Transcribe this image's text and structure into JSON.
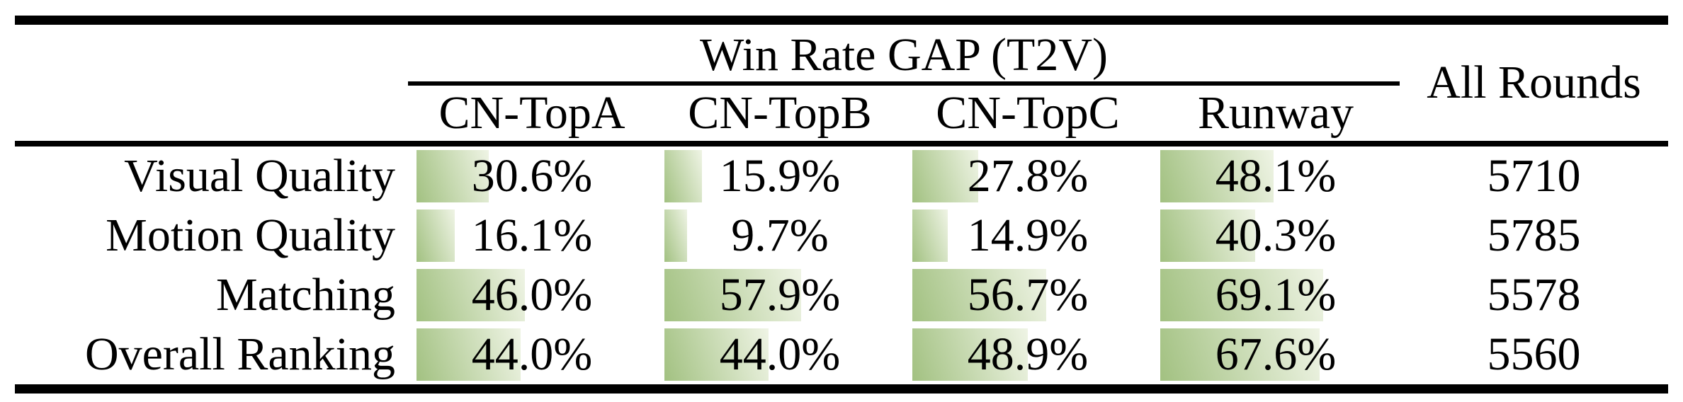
{
  "table": {
    "group_header": "Win Rate GAP (T2V)",
    "all_rounds_header": "All Rounds",
    "columns": [
      "CN-TopA",
      "CN-TopB",
      "CN-TopC",
      "Runway"
    ],
    "rows": [
      {
        "label": "Visual Quality",
        "cells": [
          {
            "value": 30.6,
            "text": "30.6%"
          },
          {
            "value": 15.9,
            "text": "15.9%"
          },
          {
            "value": 27.8,
            "text": "27.8%"
          },
          {
            "value": 48.1,
            "text": "48.1%"
          }
        ],
        "rounds": "5710"
      },
      {
        "label": "Motion Quality",
        "cells": [
          {
            "value": 16.1,
            "text": "16.1%"
          },
          {
            "value": 9.7,
            "text": "9.7%"
          },
          {
            "value": 14.9,
            "text": "14.9%"
          },
          {
            "value": 40.3,
            "text": "40.3%"
          }
        ],
        "rounds": "5785"
      },
      {
        "label": "Matching",
        "cells": [
          {
            "value": 46.0,
            "text": "46.0%"
          },
          {
            "value": 57.9,
            "text": "57.9%"
          },
          {
            "value": 56.7,
            "text": "56.7%"
          },
          {
            "value": 69.1,
            "text": "69.1%"
          }
        ],
        "rounds": "5578"
      },
      {
        "label": "Overall Ranking",
        "cells": [
          {
            "value": 44.0,
            "text": "44.0%"
          },
          {
            "value": 44.0,
            "text": "44.0%"
          },
          {
            "value": 48.9,
            "text": "48.9%"
          },
          {
            "value": 67.6,
            "text": "67.6%"
          }
        ],
        "rounds": "5560"
      }
    ]
  },
  "colors": {
    "bar_gradient_start": "#a2c181",
    "bar_gradient_end": "#eff4e5",
    "rule_color": "#000000",
    "text_color": "#000000"
  },
  "chart_data": {
    "type": "table",
    "title": "Win Rate GAP (T2V)",
    "categories": [
      "Visual Quality",
      "Motion Quality",
      "Matching",
      "Overall Ranking"
    ],
    "series": [
      {
        "name": "CN-TopA",
        "values": [
          30.6,
          16.1,
          46.0,
          44.0
        ]
      },
      {
        "name": "CN-TopB",
        "values": [
          15.9,
          9.7,
          57.9,
          44.0
        ]
      },
      {
        "name": "CN-TopC",
        "values": [
          27.8,
          14.9,
          56.7,
          48.9
        ]
      },
      {
        "name": "Runway",
        "values": [
          48.1,
          40.3,
          69.1,
          67.6
        ]
      }
    ],
    "all_rounds": [
      5710,
      5785,
      5578,
      5560
    ],
    "unit": "%",
    "bar_scale_max_percent": 100
  }
}
